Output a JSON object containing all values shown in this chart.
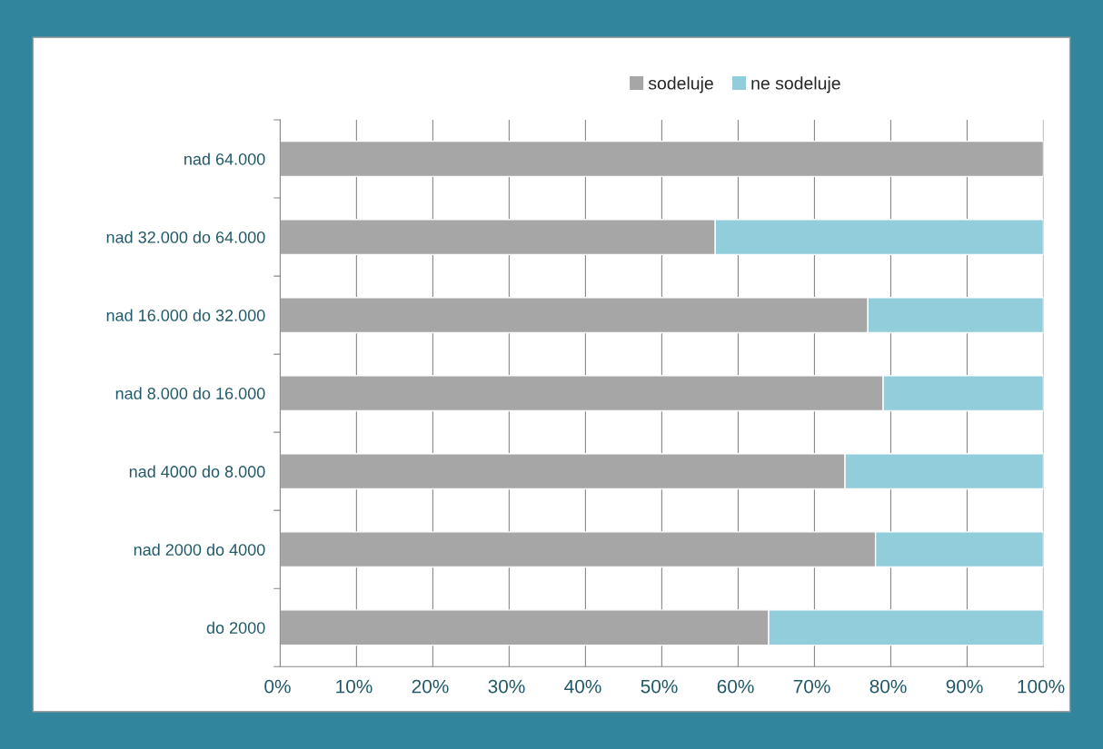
{
  "chart_data": {
    "type": "bar",
    "orientation": "horizontal",
    "stacked": true,
    "categories": [
      " nad 64.000 ",
      " nad 32.000 do 64.000 ",
      " nad 16.000 do 32.000 ",
      "nad 8.000 do 16.000 ",
      "nad 4000 do 8.000 ",
      "nad 2000 do 4000 ",
      " do 2000 "
    ],
    "series": [
      {
        "name": "sodeluje ",
        "color": "#a6a6a6",
        "values": [
          100,
          57,
          77,
          79,
          74,
          78,
          64
        ]
      },
      {
        "name": "ne sodeluje ",
        "color": "#92cddc",
        "values": [
          null,
          43,
          23,
          21,
          26,
          22,
          36
        ]
      }
    ],
    "xlim": [
      0,
      100
    ],
    "xticks": [
      {
        "value": 0,
        "label": "0% "
      },
      {
        "value": 10,
        "label": "10% "
      },
      {
        "value": 20,
        "label": "20% "
      },
      {
        "value": 30,
        "label": "30% "
      },
      {
        "value": 40,
        "label": "40% "
      },
      {
        "value": 50,
        "label": "50% "
      },
      {
        "value": 60,
        "label": "60% "
      },
      {
        "value": 70,
        "label": "70% "
      },
      {
        "value": 80,
        "label": "80% "
      },
      {
        "value": 90,
        "label": "90% "
      },
      {
        "value": 100,
        "label": "100% "
      }
    ],
    "grid": "x",
    "legend": "top"
  }
}
